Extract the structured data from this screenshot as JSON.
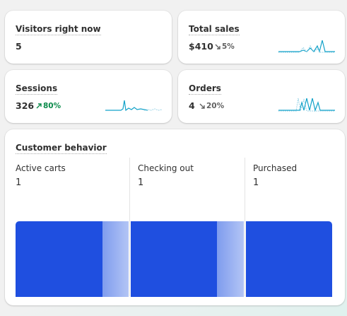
{
  "metrics": [
    {
      "label": "Visitors right now",
      "value": "5"
    },
    {
      "label": "Total sales",
      "value": "$410",
      "change": "5%"
    },
    {
      "label": "Sessions",
      "value": "326",
      "change": "80%"
    },
    {
      "label": "Orders",
      "value": "4",
      "change": "20%"
    }
  ],
  "customer_behavior": {
    "title": "Customer behavior",
    "stages": [
      {
        "label": "Active carts",
        "value": "1"
      },
      {
        "label": "Checking out",
        "value": "1"
      },
      {
        "label": "Purchased",
        "value": "1"
      }
    ]
  }
}
